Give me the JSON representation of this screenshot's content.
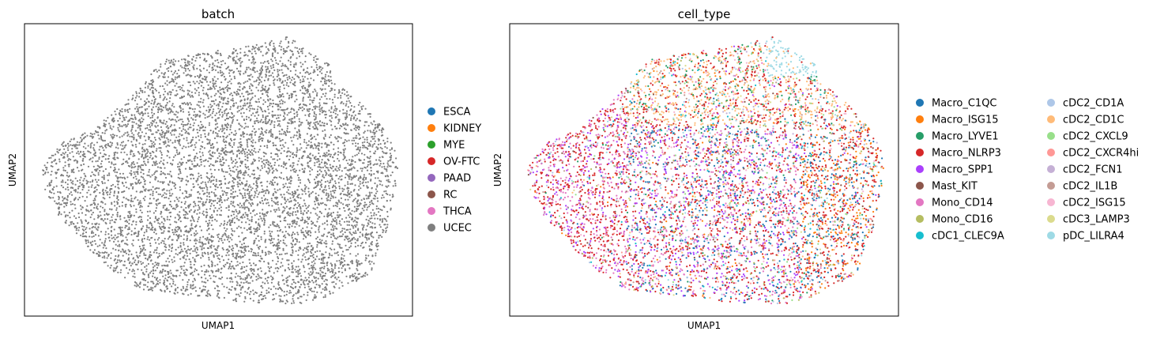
{
  "chart_data": [
    {
      "type": "scatter",
      "title": "batch",
      "xlabel": "UMAP1",
      "ylabel": "UMAP2",
      "xticks": "none",
      "yticks": "none",
      "legend_position": "right",
      "legend": [
        {
          "label": "ESCA",
          "color": "#1f77b4"
        },
        {
          "label": "KIDNEY",
          "color": "#ff7f0e"
        },
        {
          "label": "MYE",
          "color": "#2ca02c"
        },
        {
          "label": "OV-FTC",
          "color": "#d62728"
        },
        {
          "label": "PAAD",
          "color": "#9467bd"
        },
        {
          "label": "RC",
          "color": "#8c564b"
        },
        {
          "label": "THCA",
          "color": "#e377c2"
        },
        {
          "label": "UCEC",
          "color": "#7f7f7f"
        }
      ],
      "points_color": "#7f7f7f"
    },
    {
      "type": "scatter",
      "title": "cell_type",
      "xlabel": "UMAP1",
      "ylabel": "UMAP2",
      "xticks": "none",
      "yticks": "none",
      "legend_position": "right",
      "legend": [
        {
          "label": "Macro_C1QC",
          "color": "#1f77b4"
        },
        {
          "label": "Macro_ISG15",
          "color": "#ff7f0e"
        },
        {
          "label": "Macro_LYVE1",
          "color": "#279e68"
        },
        {
          "label": "Macro_NLRP3",
          "color": "#d62728"
        },
        {
          "label": "Macro_SPP1",
          "color": "#aa40fc"
        },
        {
          "label": "Mast_KIT",
          "color": "#8c564b"
        },
        {
          "label": "Mono_CD14",
          "color": "#e377c2"
        },
        {
          "label": "Mono_CD16",
          "color": "#b5bd61"
        },
        {
          "label": "cDC1_CLEC9A",
          "color": "#17becf"
        },
        {
          "label": "cDC2_CD1A",
          "color": "#aec7e8"
        },
        {
          "label": "cDC2_CD1C",
          "color": "#ffbb78"
        },
        {
          "label": "cDC2_CXCL9",
          "color": "#98df8a"
        },
        {
          "label": "cDC2_CXCR4hi",
          "color": "#ff9896"
        },
        {
          "label": "cDC2_FCN1",
          "color": "#c5b0d5"
        },
        {
          "label": "cDC2_IL1B",
          "color": "#c49c94"
        },
        {
          "label": "cDC2_ISG15",
          "color": "#f7b6d2"
        },
        {
          "label": "cDC3_LAMP3",
          "color": "#dbdb8d"
        },
        {
          "label": "pDC_LILRA4",
          "color": "#9edae5"
        }
      ]
    }
  ]
}
